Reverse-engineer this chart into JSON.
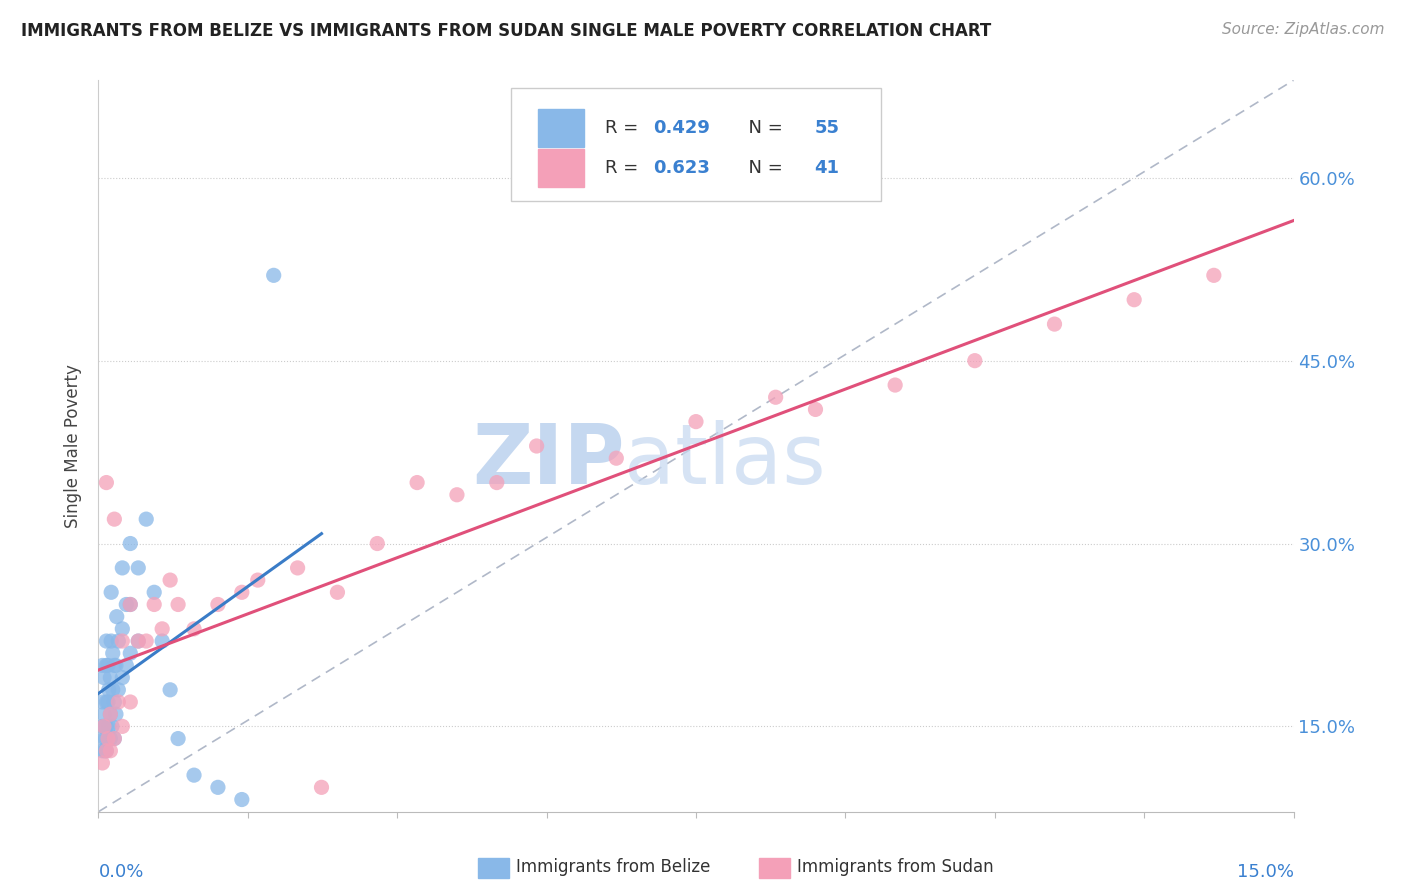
{
  "title": "IMMIGRANTS FROM BELIZE VS IMMIGRANTS FROM SUDAN SINGLE MALE POVERTY CORRELATION CHART",
  "source": "Source: ZipAtlas.com",
  "ylabel": "Single Male Poverty",
  "right_yticks": [
    0.15,
    0.3,
    0.45,
    0.6
  ],
  "right_yticklabels": [
    "15.0%",
    "30.0%",
    "45.0%",
    "60.0%"
  ],
  "belize_color": "#89b8e8",
  "sudan_color": "#f4a0b8",
  "trend_belize": "#3a7cc7",
  "trend_sudan": "#e0507a",
  "r_belize": 0.429,
  "n_belize": 55,
  "r_sudan": 0.623,
  "n_sudan": 41,
  "legend_label_belize": "Immigrants from Belize",
  "legend_label_sudan": "Immigrants from Sudan",
  "watermark_zip": "ZIP",
  "watermark_atlas": "atlas",
  "watermark_color": "#c5d8f0",
  "xmin": 0.0,
  "xmax": 0.15,
  "ymin": 0.08,
  "ymax": 0.68,
  "belize_x": [
    0.0005,
    0.0005,
    0.0005,
    0.0005,
    0.0007,
    0.0007,
    0.0007,
    0.0008,
    0.0008,
    0.0009,
    0.001,
    0.001,
    0.001,
    0.001,
    0.001,
    0.0012,
    0.0012,
    0.0012,
    0.0013,
    0.0013,
    0.0015,
    0.0015,
    0.0015,
    0.0016,
    0.0016,
    0.0017,
    0.0018,
    0.0018,
    0.002,
    0.002,
    0.002,
    0.0022,
    0.0022,
    0.0023,
    0.0025,
    0.0025,
    0.003,
    0.003,
    0.003,
    0.0035,
    0.0035,
    0.004,
    0.004,
    0.004,
    0.005,
    0.005,
    0.006,
    0.007,
    0.008,
    0.009,
    0.01,
    0.012,
    0.015,
    0.018,
    0.022
  ],
  "belize_y": [
    0.13,
    0.15,
    0.17,
    0.2,
    0.14,
    0.16,
    0.19,
    0.13,
    0.15,
    0.14,
    0.13,
    0.15,
    0.17,
    0.2,
    0.22,
    0.14,
    0.17,
    0.2,
    0.15,
    0.18,
    0.14,
    0.16,
    0.19,
    0.22,
    0.26,
    0.15,
    0.18,
    0.21,
    0.14,
    0.17,
    0.2,
    0.16,
    0.2,
    0.24,
    0.18,
    0.22,
    0.19,
    0.23,
    0.28,
    0.2,
    0.25,
    0.21,
    0.25,
    0.3,
    0.22,
    0.28,
    0.32,
    0.26,
    0.22,
    0.18,
    0.14,
    0.11,
    0.1,
    0.09,
    0.52
  ],
  "sudan_x": [
    0.0005,
    0.0007,
    0.001,
    0.001,
    0.0012,
    0.0015,
    0.0015,
    0.002,
    0.002,
    0.0025,
    0.003,
    0.003,
    0.004,
    0.004,
    0.005,
    0.006,
    0.007,
    0.008,
    0.009,
    0.01,
    0.012,
    0.015,
    0.018,
    0.02,
    0.025,
    0.028,
    0.03,
    0.035,
    0.04,
    0.045,
    0.05,
    0.055,
    0.065,
    0.075,
    0.085,
    0.09,
    0.1,
    0.11,
    0.12,
    0.13,
    0.14
  ],
  "sudan_y": [
    0.12,
    0.15,
    0.13,
    0.35,
    0.14,
    0.13,
    0.16,
    0.14,
    0.32,
    0.17,
    0.15,
    0.22,
    0.17,
    0.25,
    0.22,
    0.22,
    0.25,
    0.23,
    0.27,
    0.25,
    0.23,
    0.25,
    0.26,
    0.27,
    0.28,
    0.1,
    0.26,
    0.3,
    0.35,
    0.34,
    0.35,
    0.38,
    0.37,
    0.4,
    0.42,
    0.41,
    0.43,
    0.45,
    0.48,
    0.5,
    0.52
  ]
}
